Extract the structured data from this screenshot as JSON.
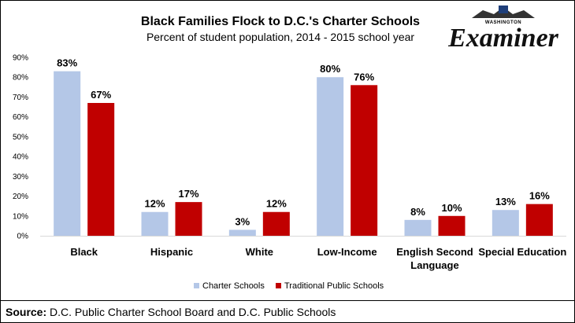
{
  "logo": {
    "small_text": "WASHINGTON",
    "big_text": "Examiner"
  },
  "source": {
    "label": "Source:",
    "text": "D.C. Public Charter School Board and D.C. Public Schools"
  },
  "chart_data": {
    "type": "bar",
    "title": "Black Families Flock to D.C.'s Charter Schools",
    "subtitle": "Percent of student population, 2014 - 2015 school year",
    "xlabel": "",
    "ylabel": "",
    "ylim": [
      0,
      90
    ],
    "yticks": [
      0,
      10,
      20,
      30,
      40,
      50,
      60,
      70,
      80,
      90
    ],
    "categories": [
      [
        "Black"
      ],
      [
        "Hispanic"
      ],
      [
        "White"
      ],
      [
        "Low-Income"
      ],
      [
        "English Second",
        "Language"
      ],
      [
        "Special Education"
      ]
    ],
    "series": [
      {
        "name": "Charter Schools",
        "color": "#b4c7e7",
        "values": [
          83,
          12,
          3,
          80,
          8,
          13
        ]
      },
      {
        "name": "Traditional Public Schools",
        "color": "#c00000",
        "values": [
          67,
          17,
          12,
          76,
          10,
          16
        ]
      }
    ],
    "grid": false,
    "legend_position": "bottom"
  }
}
